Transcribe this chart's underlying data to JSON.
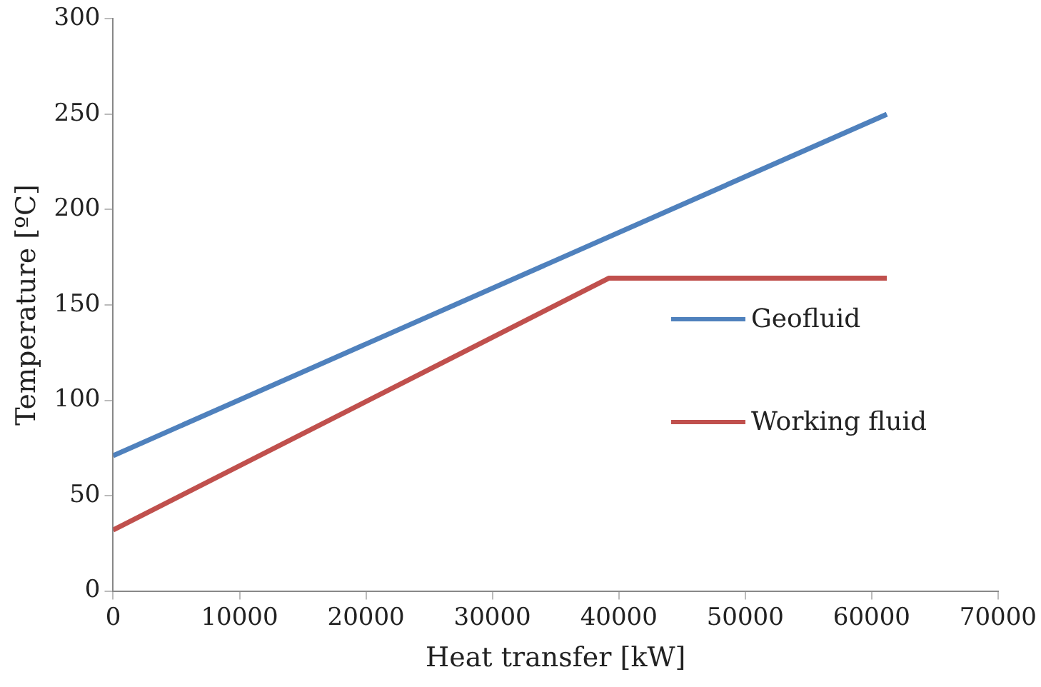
{
  "chart_data": {
    "type": "line",
    "xlabel": "Heat transfer [kW]",
    "ylabel": "Temperature [ºC]",
    "xlim": [
      0,
      70000
    ],
    "xticks": [
      0,
      10000,
      20000,
      30000,
      40000,
      50000,
      60000,
      70000
    ],
    "ylim": [
      0,
      300
    ],
    "yticks": [
      0,
      50,
      100,
      150,
      200,
      250,
      300
    ],
    "series": [
      {
        "name": "Geofluid",
        "color": "#4f81bd",
        "x": [
          0,
          61200
        ],
        "values": [
          71,
          250
        ]
      },
      {
        "name": "Working fluid",
        "color": "#c0504d",
        "x": [
          0,
          39200,
          61200
        ],
        "values": [
          32,
          164,
          164
        ]
      }
    ],
    "grid": false,
    "legend": "right",
    "marker": "none",
    "line_style": "solid"
  }
}
